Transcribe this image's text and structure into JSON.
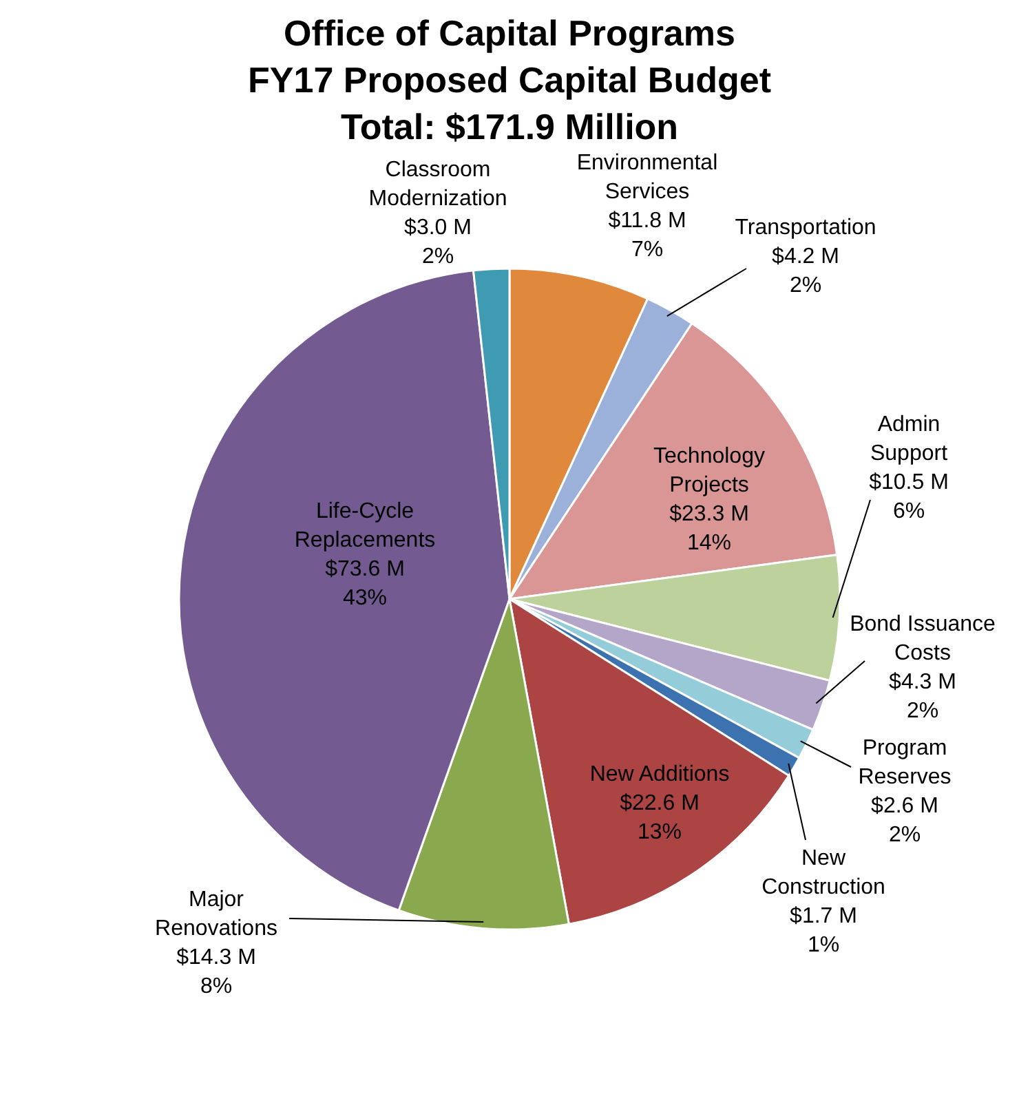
{
  "chart_data": {
    "type": "pie",
    "title": "Office of Capital Programs\nFY17 Proposed Capital Budget\nTotal: $171.9 Million",
    "categories": [
      "Environmental\nServices",
      "Transportation",
      "Technology\nProjects",
      "Admin\nSupport",
      "Bond Issuance\nCosts",
      "Program\nReserves",
      "New\nConstruction",
      "New Additions",
      "Major\nRenovations",
      "Life-Cycle\nReplacements",
      "Classroom\nModernization"
    ],
    "values": [
      11.8,
      4.2,
      23.3,
      10.5,
      4.3,
      2.6,
      1.7,
      22.6,
      14.3,
      73.6,
      3.0
    ],
    "value_labels": [
      "$11.8 M\n7%",
      "$4.2 M\n2%",
      "$23.3 M\n14%",
      "$10.5 M\n6%",
      "$4.3 M\n2%",
      "$2.6 M\n2%",
      "$1.7 M\n1%",
      "$22.6 M\n13%",
      "$14.3 M\n8%",
      "$73.6 M\n43%",
      "$3.0 M\n2%"
    ],
    "colors": [
      "#e0883c",
      "#9cb1d9",
      "#d99694",
      "#bcd19c",
      "#b3a6c9",
      "#94cdd9",
      "#3c72b0",
      "#ab4442",
      "#8aa84e",
      "#735a91",
      "#3f9bb1"
    ],
    "legend": false
  }
}
